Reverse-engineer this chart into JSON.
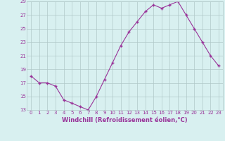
{
  "x": [
    0,
    1,
    2,
    3,
    4,
    5,
    6,
    7,
    8,
    9,
    10,
    11,
    12,
    13,
    14,
    15,
    16,
    17,
    18,
    19,
    20,
    21,
    22,
    23
  ],
  "y": [
    18.0,
    17.0,
    17.0,
    16.5,
    14.5,
    14.0,
    13.5,
    13.0,
    15.0,
    17.5,
    20.0,
    22.5,
    24.5,
    26.0,
    27.5,
    28.5,
    28.0,
    28.5,
    29.0,
    27.0,
    25.0,
    23.0,
    21.0,
    19.5
  ],
  "xlabel": "Windchill (Refroidissement éolien,°C)",
  "ylim": [
    13,
    29
  ],
  "yticks": [
    13,
    15,
    17,
    19,
    21,
    23,
    25,
    27,
    29
  ],
  "xticks": [
    0,
    1,
    2,
    3,
    4,
    5,
    6,
    7,
    8,
    9,
    10,
    11,
    12,
    13,
    14,
    15,
    16,
    17,
    18,
    19,
    20,
    21,
    22,
    23
  ],
  "line_color": "#993399",
  "marker": "+",
  "bg_color": "#d8f0f0",
  "grid_color": "#b0c8c8",
  "axis_label_color": "#993399",
  "tick_label_color": "#993399",
  "tick_fontsize": 5.0,
  "xlabel_fontsize": 6.0
}
